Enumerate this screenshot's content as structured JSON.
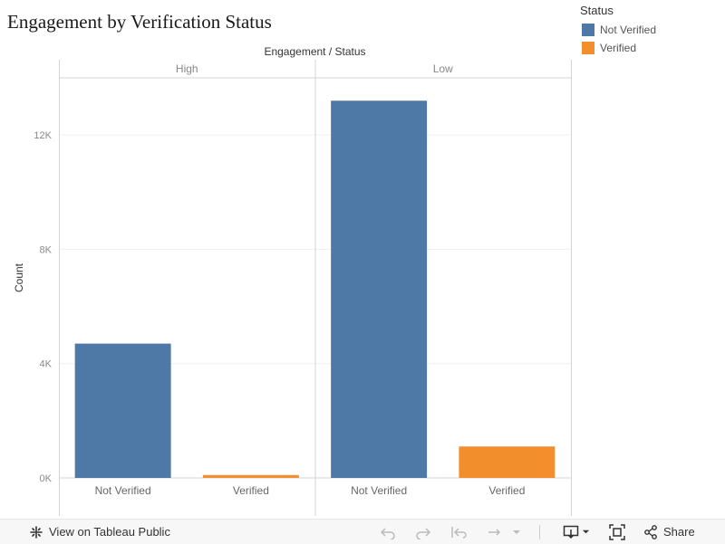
{
  "page": {
    "title": "Engagement by Verification Status"
  },
  "legend": {
    "title": "Status",
    "items": [
      {
        "label": "Not Verified",
        "color": "#4e79a7"
      },
      {
        "label": "Verified",
        "color": "#f28e2b"
      }
    ]
  },
  "chart_data": {
    "type": "bar",
    "title": "Engagement by Verification Status",
    "header_label": "Engagement / Status",
    "ylabel": "Count",
    "ylim": [
      0,
      14000
    ],
    "yticks": [
      0,
      4000,
      8000,
      12000
    ],
    "ytick_labels": [
      "0K",
      "4K",
      "8K",
      "12K"
    ],
    "grid": true,
    "legend_position": "top-right",
    "panels": [
      {
        "label": "High",
        "categories": [
          "Not Verified",
          "Verified"
        ],
        "values": [
          4700,
          100
        ]
      },
      {
        "label": "Low",
        "categories": [
          "Not Verified",
          "Verified"
        ],
        "values": [
          13200,
          1100
        ]
      }
    ],
    "colors": {
      "Not Verified": "#4e79a7",
      "Verified": "#f28e2b"
    }
  },
  "toolbar": {
    "view_label": "View on Tableau Public",
    "share_label": "Share",
    "icons": [
      "tableau-icon",
      "undo-icon",
      "redo-icon",
      "revert-icon",
      "refresh-icon",
      "pause-icon",
      "download-icon",
      "fullscreen-icon",
      "share-icon"
    ]
  }
}
